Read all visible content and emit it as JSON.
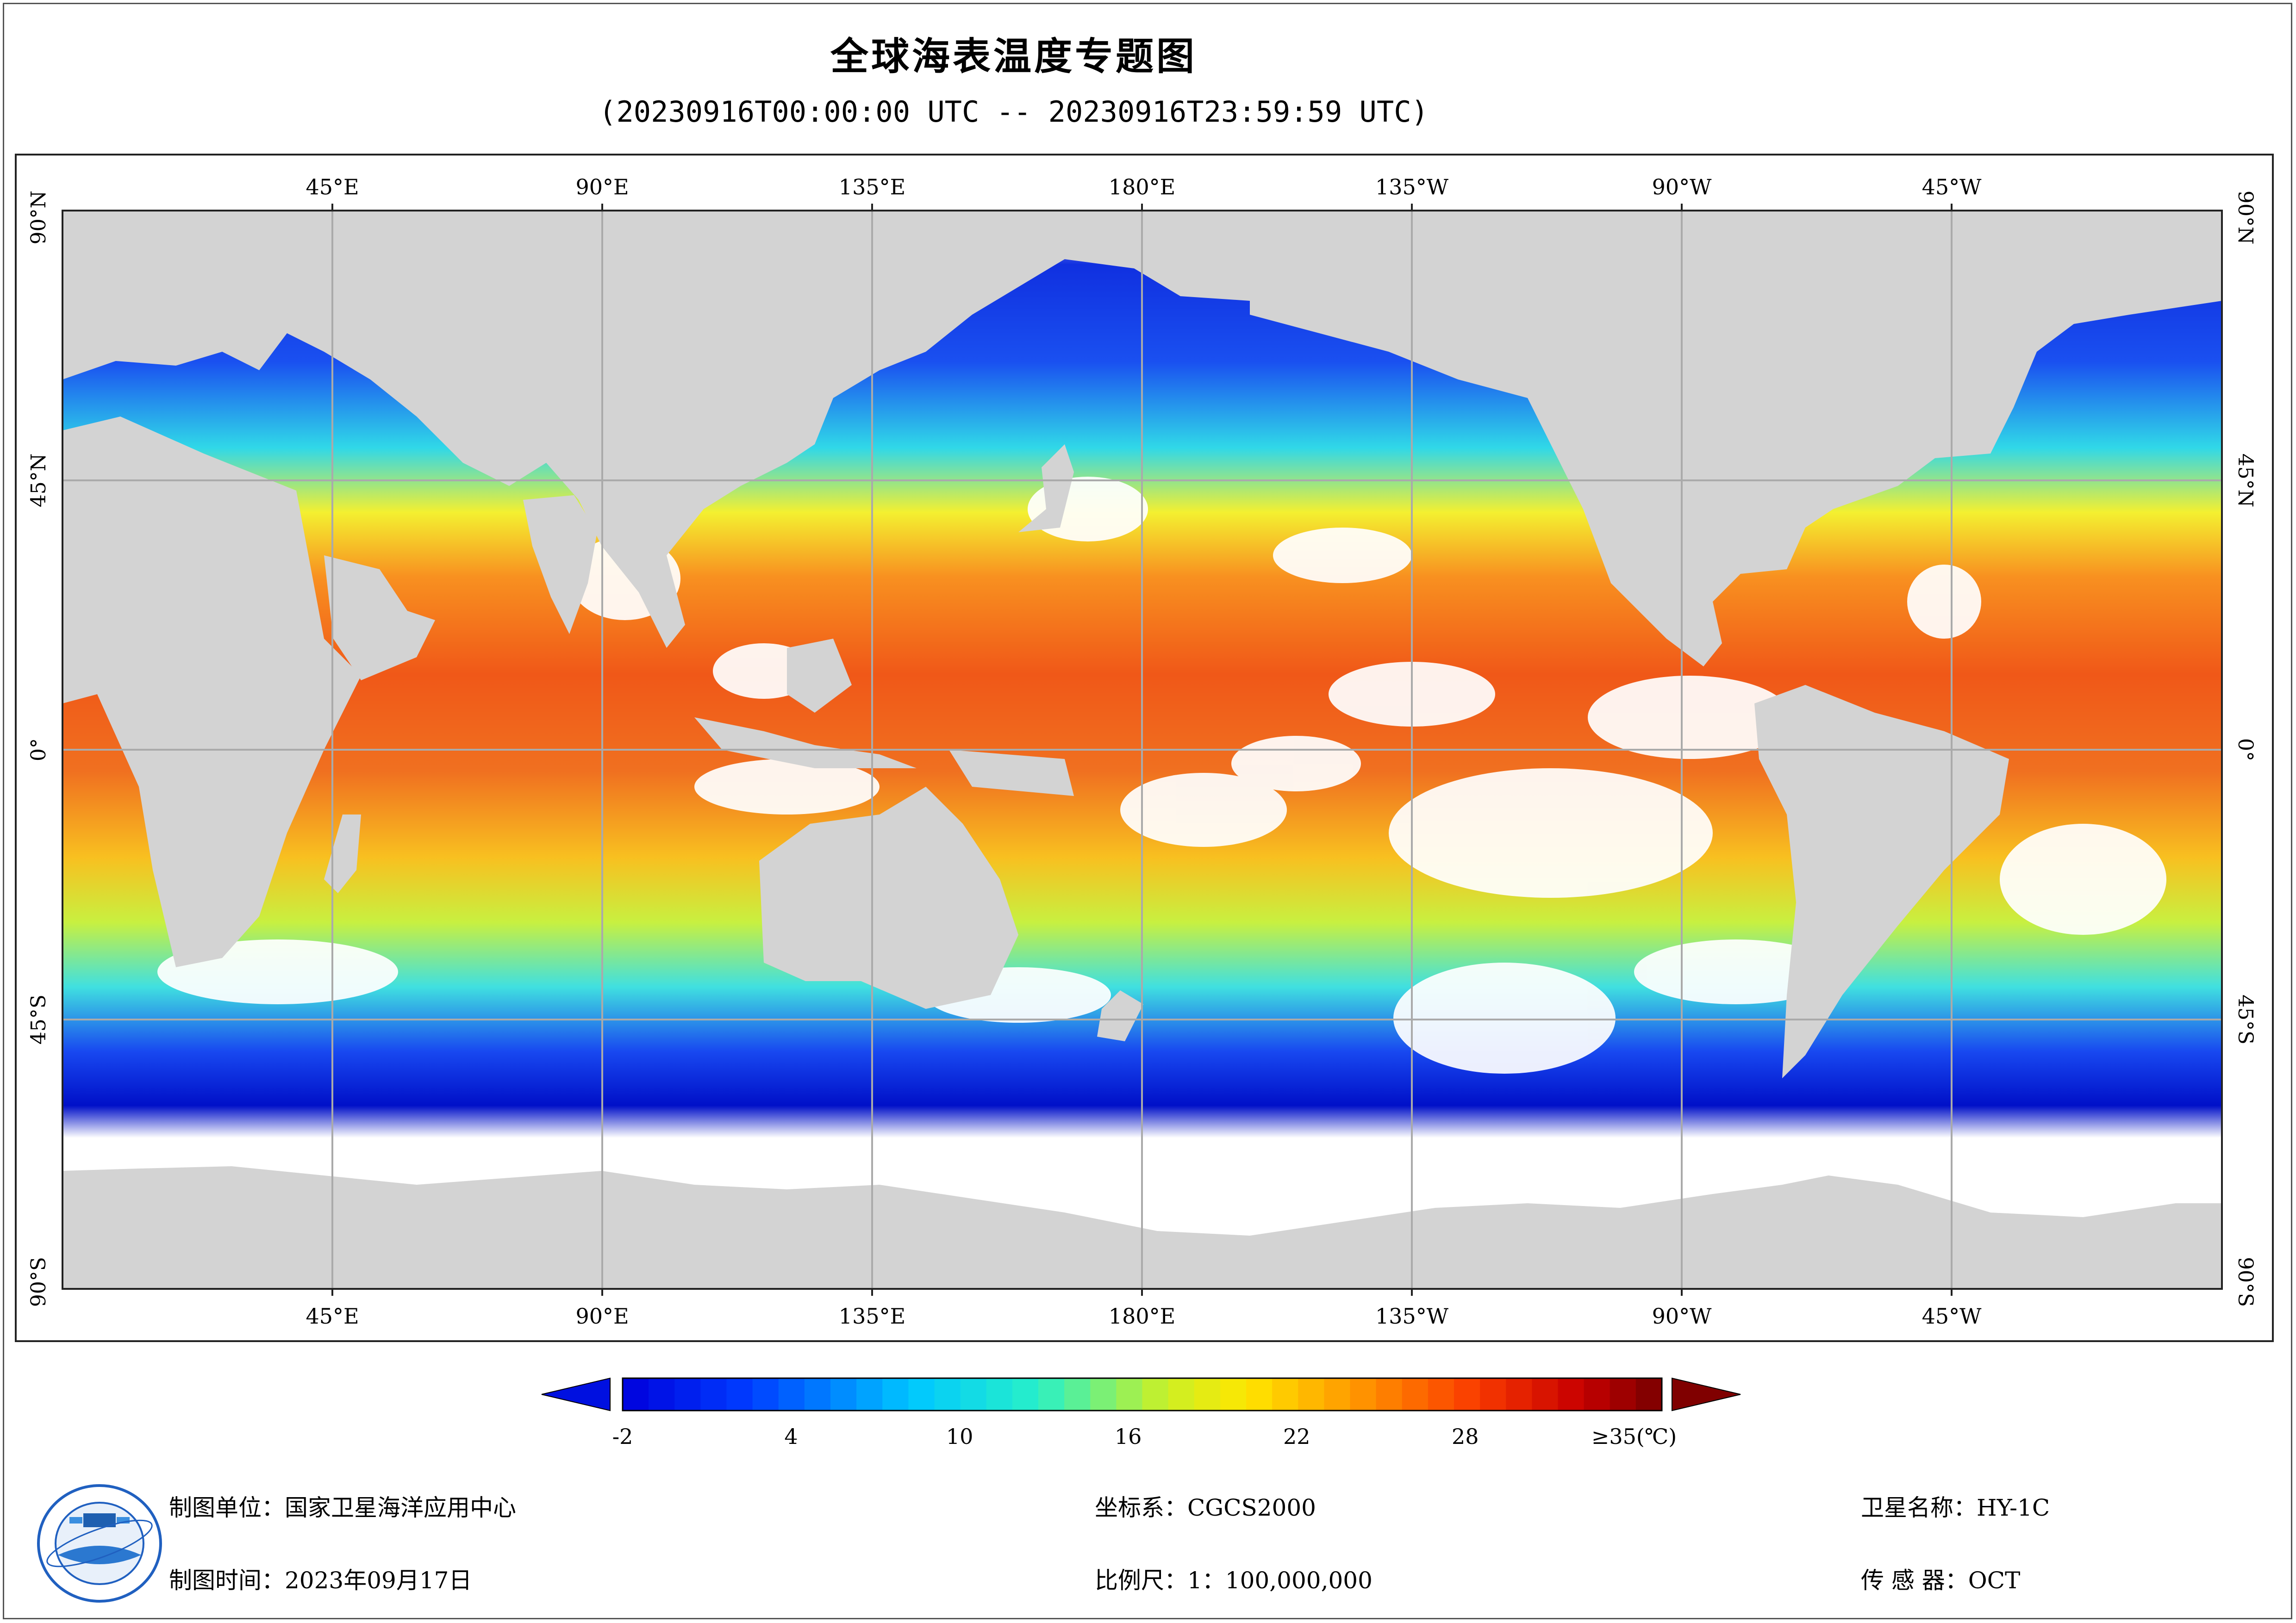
{
  "header": {
    "title": "全球海表温度专题图",
    "subtitle": "(20230916T00:00:00 UTC -- 20230916T23:59:59 UTC)"
  },
  "map": {
    "lon_labels": [
      "45°E",
      "90°E",
      "135°E",
      "180°E",
      "135°W",
      "90°W",
      "45°W"
    ],
    "lat_labels": [
      "90°N",
      "45°N",
      "0°",
      "45°S",
      "90°S"
    ],
    "lon_range": [
      0,
      360
    ],
    "lat_range": [
      -90,
      90
    ],
    "colors": {
      "land": "#d3d3d3",
      "no_data": "#ffffff",
      "grid": "#aaaaaa"
    }
  },
  "legend": {
    "tick_labels": [
      "-2",
      "4",
      "10",
      "16",
      "22",
      "28",
      "≥35(℃)"
    ],
    "tick_values": [
      -2,
      4,
      10,
      16,
      22,
      28,
      35
    ],
    "min": -2,
    "max": 35
  },
  "footer": {
    "org_label": "制图单位：国家卫星海洋应用中心",
    "time_label": "制图时间：2023年09月17日",
    "crs_label": "坐标系：CGCS2000",
    "scale_label": "比例尺：1：100,000,000",
    "satellite_label": "卫星名称：HY-1C",
    "sensor_label": "传 感 器：OCT"
  }
}
